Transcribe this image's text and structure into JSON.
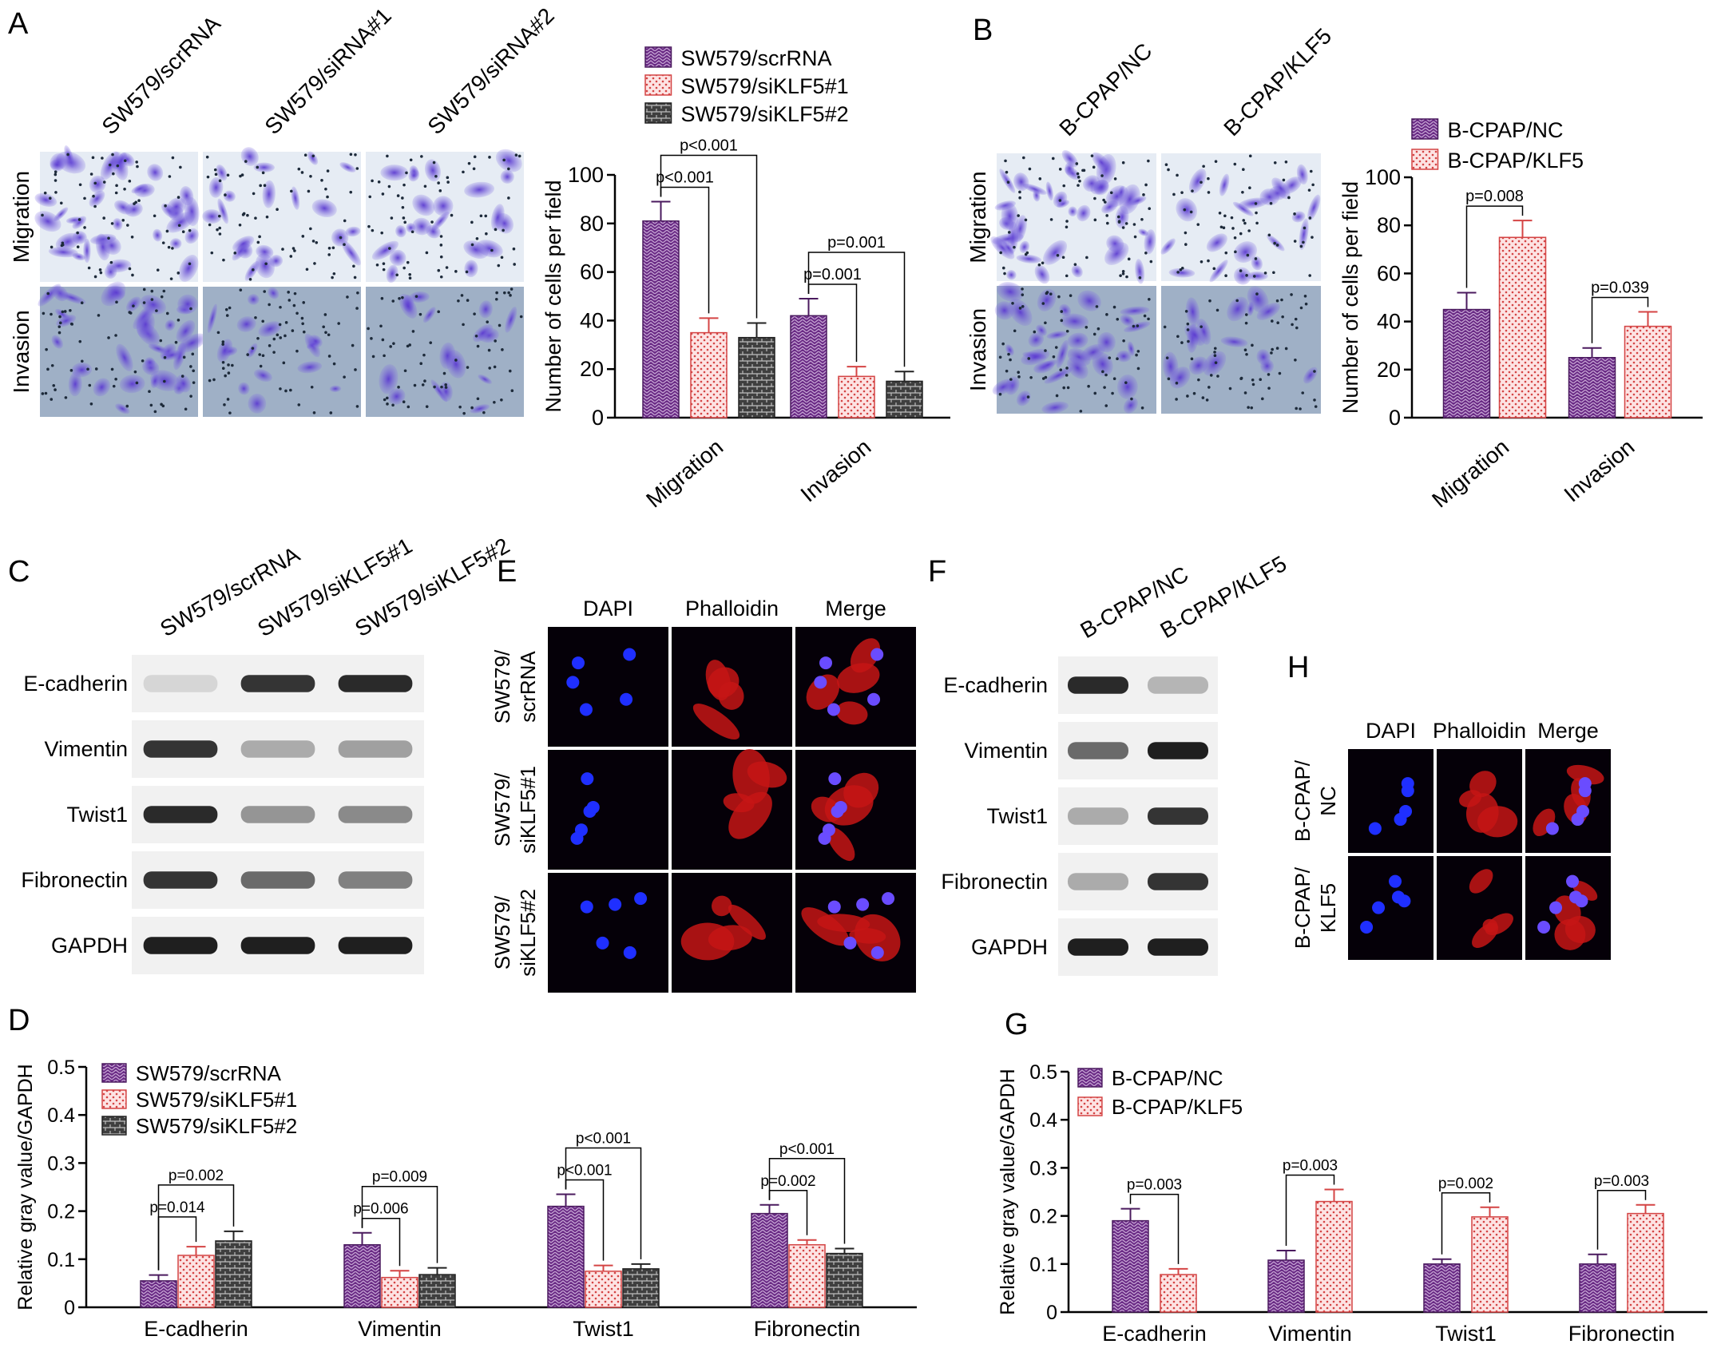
{
  "colors": {
    "purple": "#6b2c86",
    "red": "#d44444",
    "gray": "#555555",
    "micro_bg": "#dfe6f0",
    "stain": "#6a4fc9",
    "dapi": "#2a3cff",
    "phalloidin": "#d01818"
  },
  "panel_letters": {
    "A": "A",
    "B": "B",
    "C": "C",
    "D": "D",
    "E": "E",
    "F": "F",
    "G": "G",
    "H": "H"
  },
  "panelA": {
    "cols": [
      "SW579/scrRNA",
      "SW579/siRNA#1",
      "SW579/siRNA#2"
    ],
    "rows": [
      "Migration",
      "Invasion"
    ]
  },
  "panelB": {
    "cols": [
      "B-CPAP/NC",
      "B-CPAP/KLF5"
    ],
    "rows": [
      "Migration",
      "Invasion"
    ]
  },
  "panelC": {
    "cols": [
      "SW579/scrRNA",
      "SW579/siKLF5#1",
      "SW579/siKLF5#2"
    ],
    "rows": [
      "E-cadherin",
      "Vimentin",
      "Twist1",
      "Fibronectin",
      "GAPDH"
    ],
    "band_intensity": [
      [
        0.1,
        0.85,
        0.9
      ],
      [
        0.85,
        0.3,
        0.35
      ],
      [
        0.9,
        0.4,
        0.45
      ],
      [
        0.85,
        0.6,
        0.5
      ],
      [
        0.95,
        0.95,
        0.95
      ]
    ]
  },
  "panelE": {
    "cols": [
      "DAPI",
      "Phalloidin",
      "Merge"
    ],
    "rows": [
      "SW579/\nscrRNA",
      "SW579/\nsiKLF5#1",
      "SW579/\nsiKLF5#2"
    ]
  },
  "panelF": {
    "cols": [
      "B-CPAP/NC",
      "B-CPAP/KLF5"
    ],
    "rows": [
      "E-cadherin",
      "Vimentin",
      "Twist1",
      "Fibronectin",
      "GAPDH"
    ],
    "band_intensity": [
      [
        0.9,
        0.25
      ],
      [
        0.6,
        0.95
      ],
      [
        0.3,
        0.85
      ],
      [
        0.3,
        0.85
      ],
      [
        0.95,
        0.95
      ]
    ]
  },
  "panelH": {
    "cols": [
      "DAPI",
      "Phalloidin",
      "Merge"
    ],
    "rows": [
      "B-CPAP/\nNC",
      "B-CPAP/\nKLF5"
    ]
  },
  "chart_data": [
    {
      "id": "A",
      "type": "bar",
      "ylabel": "Number of cells per field",
      "ylim": [
        0,
        100
      ],
      "yticks": [
        0,
        20,
        40,
        60,
        80,
        100
      ],
      "categories": [
        "Migration",
        "Invasion"
      ],
      "series": [
        {
          "name": "SW579/scrRNA",
          "values": [
            81,
            42
          ],
          "errors": [
            8,
            7
          ]
        },
        {
          "name": "SW579/siKLF5#1",
          "values": [
            35,
            17
          ],
          "errors": [
            6,
            4
          ]
        },
        {
          "name": "SW579/siKLF5#2",
          "values": [
            33,
            15
          ],
          "errors": [
            6,
            4
          ]
        }
      ],
      "annotations": [
        {
          "text": "p<0.001",
          "cat": 0,
          "from": 0,
          "to": 1
        },
        {
          "text": "p<0.001",
          "cat": 0,
          "from": 0,
          "to": 2
        },
        {
          "text": "p=0.001",
          "cat": 1,
          "from": 0,
          "to": 1
        },
        {
          "text": "p=0.001",
          "cat": 1,
          "from": 0,
          "to": 2
        }
      ],
      "legend": "top"
    },
    {
      "id": "B",
      "type": "bar",
      "ylabel": "Number of cells per field",
      "ylim": [
        0,
        100
      ],
      "yticks": [
        0,
        20,
        40,
        60,
        80,
        100
      ],
      "categories": [
        "Migration",
        "Invasion"
      ],
      "series": [
        {
          "name": "B-CPAP/NC",
          "values": [
            45,
            25
          ],
          "errors": [
            7,
            4
          ]
        },
        {
          "name": "B-CPAP/KLF5",
          "values": [
            75,
            38
          ],
          "errors": [
            7,
            6
          ]
        }
      ],
      "annotations": [
        {
          "text": "p=0.008",
          "cat": 0,
          "from": 0,
          "to": 1
        },
        {
          "text": "p=0.039",
          "cat": 1,
          "from": 0,
          "to": 1
        }
      ],
      "legend": "top"
    },
    {
      "id": "D",
      "type": "bar",
      "ylabel": "Relative gray value/GAPDH",
      "ylim": [
        0,
        0.5
      ],
      "yticks": [
        0,
        0.1,
        0.2,
        0.3,
        0.4,
        0.5
      ],
      "categories": [
        "E-cadherin",
        "Vimentin",
        "Twist1",
        "Fibronectin"
      ],
      "series": [
        {
          "name": "SW579/scrRNA",
          "values": [
            0.055,
            0.13,
            0.21,
            0.195
          ],
          "errors": [
            0.012,
            0.025,
            0.025,
            0.018
          ]
        },
        {
          "name": "SW579/siKLF5#1",
          "values": [
            0.108,
            0.062,
            0.075,
            0.13
          ],
          "errors": [
            0.018,
            0.014,
            0.012,
            0.01
          ]
        },
        {
          "name": "SW579/siKLF5#2",
          "values": [
            0.138,
            0.068,
            0.08,
            0.112
          ],
          "errors": [
            0.02,
            0.014,
            0.01,
            0.01
          ]
        }
      ],
      "annotations": [
        {
          "text": "p=0.014",
          "cat": 0,
          "from": 0,
          "to": 1
        },
        {
          "text": "p=0.002",
          "cat": 0,
          "from": 0,
          "to": 2
        },
        {
          "text": "p=0.006",
          "cat": 1,
          "from": 0,
          "to": 1
        },
        {
          "text": "p=0.009",
          "cat": 1,
          "from": 0,
          "to": 2
        },
        {
          "text": "p<0.001",
          "cat": 2,
          "from": 0,
          "to": 1
        },
        {
          "text": "p<0.001",
          "cat": 2,
          "from": 0,
          "to": 2
        },
        {
          "text": "p=0.002",
          "cat": 3,
          "from": 0,
          "to": 1
        },
        {
          "text": "p<0.001",
          "cat": 3,
          "from": 0,
          "to": 2
        }
      ],
      "legend": "top-left"
    },
    {
      "id": "G",
      "type": "bar",
      "ylabel": "Relative gray value/GAPDH",
      "ylim": [
        0,
        0.5
      ],
      "yticks": [
        0,
        0.1,
        0.2,
        0.3,
        0.4,
        0.5
      ],
      "categories": [
        "E-cadherin",
        "Vimentin",
        "Twist1",
        "Fibronectin"
      ],
      "series": [
        {
          "name": "B-CPAP/NC",
          "values": [
            0.19,
            0.108,
            0.1,
            0.1
          ],
          "errors": [
            0.025,
            0.02,
            0.01,
            0.02
          ]
        },
        {
          "name": "B-CPAP/KLF5",
          "values": [
            0.078,
            0.23,
            0.198,
            0.205
          ],
          "errors": [
            0.012,
            0.025,
            0.02,
            0.018
          ]
        }
      ],
      "annotations": [
        {
          "text": "p=0.003",
          "cat": 0,
          "from": 0,
          "to": 1
        },
        {
          "text": "p=0.003",
          "cat": 1,
          "from": 0,
          "to": 1
        },
        {
          "text": "p=0.002",
          "cat": 2,
          "from": 0,
          "to": 1
        },
        {
          "text": "p=0.003",
          "cat": 3,
          "from": 0,
          "to": 1
        }
      ],
      "legend": "top-left"
    }
  ]
}
